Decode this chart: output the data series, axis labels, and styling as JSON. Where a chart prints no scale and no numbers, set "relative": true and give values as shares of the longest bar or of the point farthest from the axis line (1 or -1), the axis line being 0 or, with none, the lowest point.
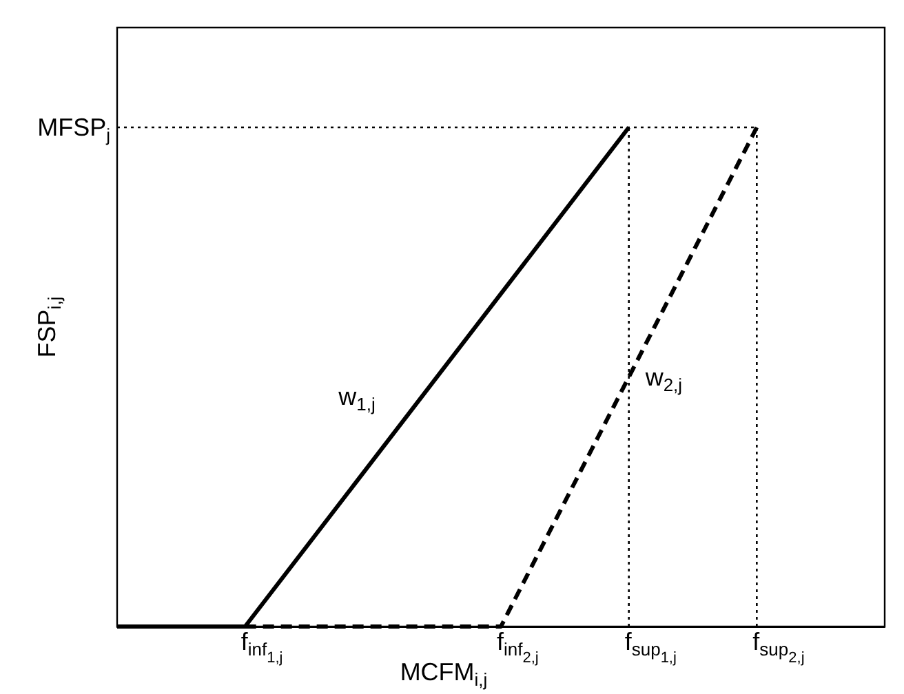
{
  "chart_data": {
    "type": "line",
    "relative": true,
    "xlabel": "MCFM$_{i,j}$",
    "ylabel": "FSP$_{i,j}$",
    "categories": [
      null,
      "f$_{inf}$$_{1,j}$",
      null,
      "f$_{inf}$$_{2,j}$",
      "f$_{sup}$$_{1,j}$",
      "f$_{sup}$$_{2,j}$",
      null
    ],
    "series": [
      {
        "name": "w$_{1,j}$",
        "color": "#000000",
        "line_style": "solid",
        "values": [
          0,
          0,
          0.3333,
          0.6667,
          1,
          null,
          null
        ]
      },
      {
        "name": "w$_{2,j}$",
        "color": "#000000",
        "line_style": "dashed",
        "values": [
          null,
          0,
          0,
          0,
          0.5,
          1,
          null
        ]
      }
    ],
    "ref_lines": [
      {
        "axis": "y",
        "value": 1,
        "label": "MFSP$_{j}$",
        "line_style": "dotted",
        "color": "#000000"
      },
      {
        "axis": "x",
        "value": "f$_{sup}$$_{1,j}$",
        "line_style": "dotted",
        "color": "#000000"
      },
      {
        "axis": "x",
        "value": "f$_{sup}$$_{2,j}$",
        "line_style": "dotted",
        "color": "#000000"
      }
    ],
    "grid": false,
    "legend": false,
    "marker": "none"
  }
}
